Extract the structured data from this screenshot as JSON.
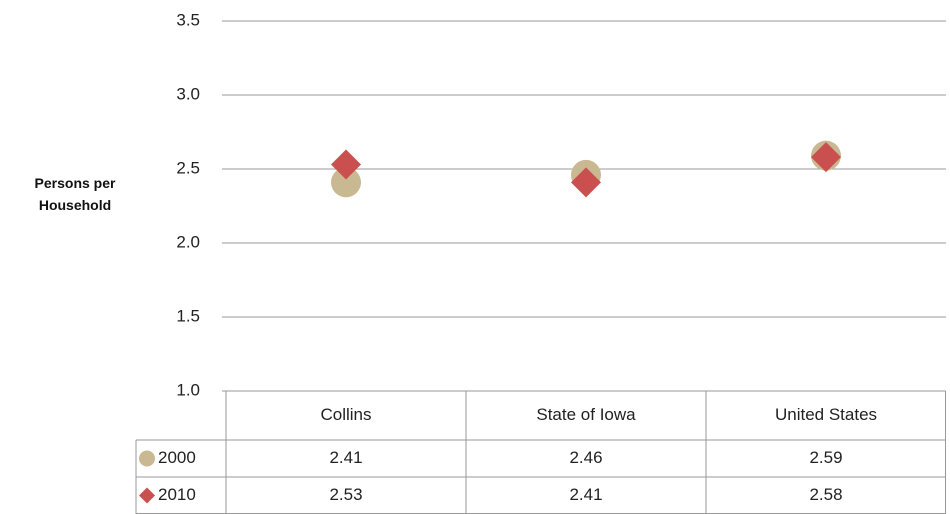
{
  "chart_data": {
    "type": "scatter",
    "y_label": "Persons per Household",
    "categories": [
      "Collins",
      "State of Iowa",
      "United States"
    ],
    "series": [
      {
        "name": "2000",
        "color": "#c9b993",
        "marker": "circle",
        "values": [
          2.41,
          2.46,
          2.59
        ]
      },
      {
        "name": "2010",
        "color": "#c9504f",
        "marker": "diamond",
        "values": [
          2.53,
          2.41,
          2.58
        ]
      }
    ],
    "ylim": [
      1.0,
      3.5
    ],
    "yticks": [
      {
        "value": 1,
        "label": "1.0"
      },
      1.5,
      {
        "value": 2,
        "label": "2.0"
      },
      2.5,
      {
        "value": 3,
        "label": "3.0"
      },
      3.5
    ],
    "grid": true,
    "data_table": true
  }
}
